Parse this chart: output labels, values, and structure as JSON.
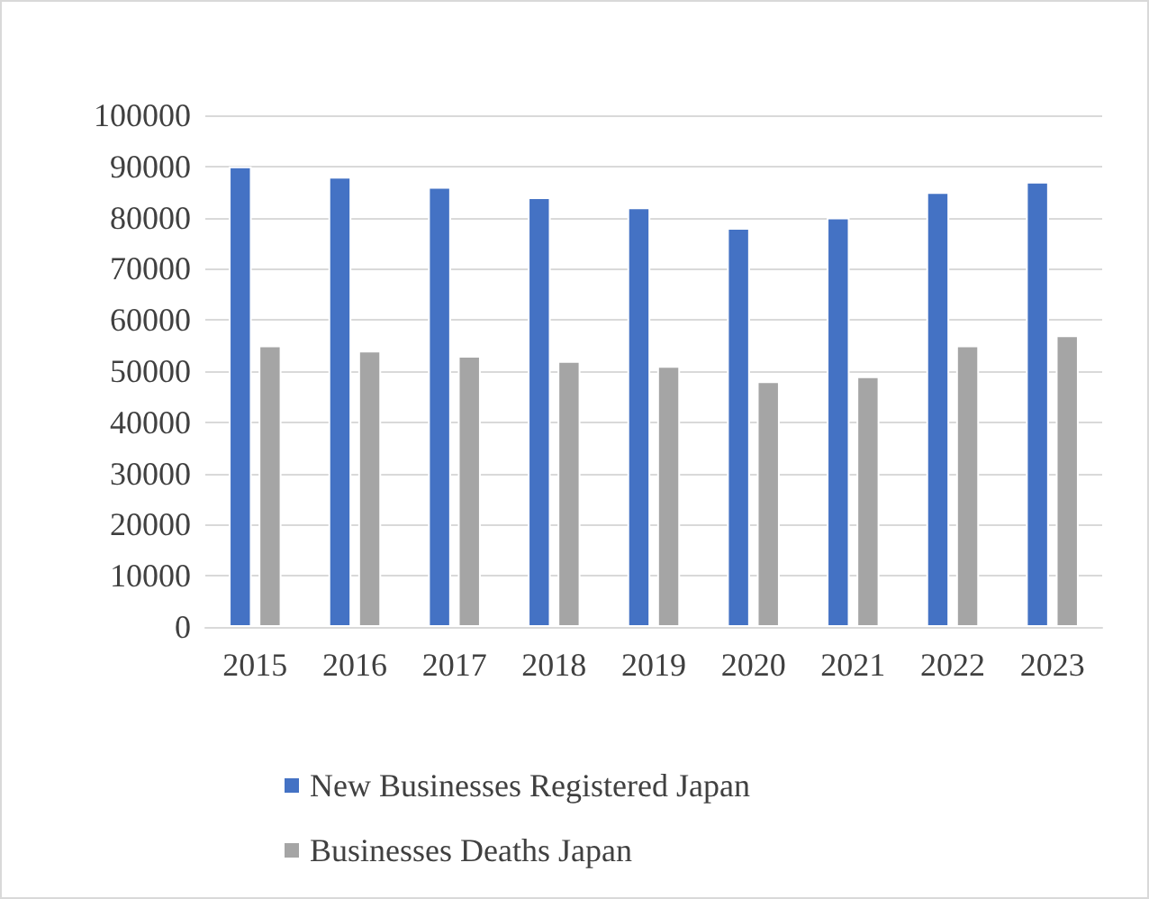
{
  "chart_data": {
    "type": "bar",
    "categories": [
      "2015",
      "2016",
      "2017",
      "2018",
      "2019",
      "2020",
      "2021",
      "2022",
      "2023"
    ],
    "series": [
      {
        "name": "New Businesses Registered Japan",
        "color": "#4472c4",
        "values": [
          90000,
          88000,
          86000,
          84000,
          82000,
          78000,
          80000,
          85000,
          87000
        ]
      },
      {
        "name": "Businesses Deaths Japan",
        "color": "#a5a5a5",
        "values": [
          55000,
          54000,
          53000,
          52000,
          51000,
          48000,
          49000,
          55000,
          57000
        ]
      }
    ],
    "ylim": [
      0,
      100000
    ],
    "yticks": [
      0,
      10000,
      20000,
      30000,
      40000,
      50000,
      60000,
      70000,
      80000,
      90000,
      100000
    ],
    "grid": "y",
    "legend": "bottom"
  }
}
